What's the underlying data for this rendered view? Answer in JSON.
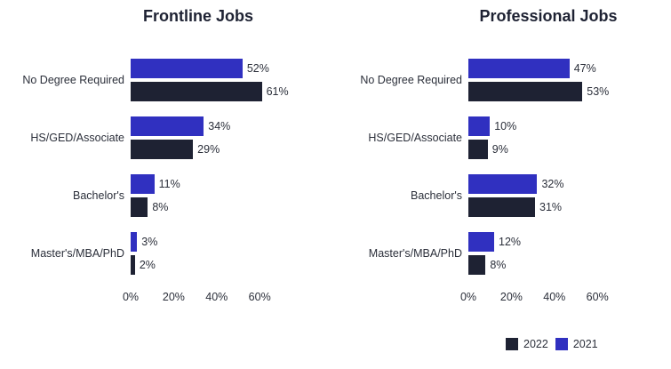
{
  "colors": {
    "2021": "#3030c0",
    "2022": "#1e2233"
  },
  "legend": [
    {
      "label": "2022",
      "color": "#1e2233"
    },
    {
      "label": "2021",
      "color": "#3030c0"
    }
  ],
  "ticks": [
    "0%",
    "20%",
    "40%",
    "60%"
  ],
  "chart_data": [
    {
      "type": "bar",
      "orientation": "horizontal",
      "title": "Frontline Jobs",
      "categories": [
        "No Degree Required",
        "HS/GED/Associate",
        "Bachelor's",
        "Master's/MBA/PhD"
      ],
      "series": [
        {
          "name": "2021",
          "values": [
            52,
            34,
            11,
            3
          ],
          "labels": [
            "52%",
            "34%",
            "11%",
            "3%"
          ]
        },
        {
          "name": "2022",
          "values": [
            61,
            29,
            8,
            2
          ],
          "labels": [
            "61%",
            "29%",
            "8%",
            "2%"
          ]
        }
      ],
      "xlabel": "",
      "ylabel": "",
      "xticks": [
        "0%",
        "20%",
        "40%",
        "60%"
      ],
      "xlim": [
        0,
        60
      ],
      "grid": false,
      "legend_position": "bottom-right"
    },
    {
      "type": "bar",
      "orientation": "horizontal",
      "title": "Professional Jobs",
      "categories": [
        "No Degree Required",
        "HS/GED/Associate",
        "Bachelor's",
        "Master's/MBA/PhD"
      ],
      "series": [
        {
          "name": "2021",
          "values": [
            47,
            10,
            32,
            12
          ],
          "labels": [
            "47%",
            "10%",
            "32%",
            "12%"
          ]
        },
        {
          "name": "2022",
          "values": [
            53,
            9,
            31,
            8
          ],
          "labels": [
            "53%",
            "9%",
            "31%",
            "8%"
          ]
        }
      ],
      "xlabel": "",
      "ylabel": "",
      "xticks": [
        "0%",
        "20%",
        "40%",
        "60%"
      ],
      "xlim": [
        0,
        60
      ],
      "grid": false,
      "legend_position": "bottom-right"
    }
  ]
}
